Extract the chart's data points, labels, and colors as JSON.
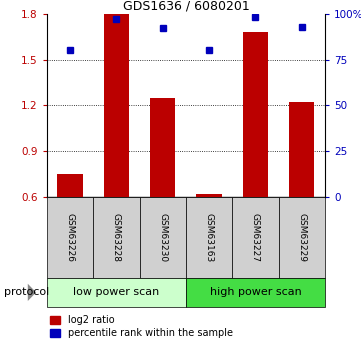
{
  "title": "GDS1636 / 6080201",
  "samples": [
    "GSM63226",
    "GSM63228",
    "GSM63230",
    "GSM63163",
    "GSM63227",
    "GSM63229"
  ],
  "log2_ratio": [
    0.75,
    1.8,
    1.25,
    0.62,
    1.68,
    1.22
  ],
  "percentile_rank": [
    80,
    97,
    92,
    80,
    98,
    93
  ],
  "bar_color": "#bb0000",
  "dot_color": "#0000bb",
  "left_ylim": [
    0.6,
    1.8
  ],
  "right_ylim": [
    0,
    100
  ],
  "left_yticks": [
    0.6,
    0.9,
    1.2,
    1.5,
    1.8
  ],
  "right_yticks": [
    0,
    25,
    50,
    75,
    100
  ],
  "right_yticklabels": [
    "0",
    "25",
    "50",
    "75",
    "100%"
  ],
  "groups": [
    {
      "label": "low power scan",
      "indices": [
        0,
        1,
        2
      ],
      "color": "#ccffcc"
    },
    {
      "label": "high power scan",
      "indices": [
        3,
        4,
        5
      ],
      "color": "#44dd44"
    }
  ],
  "protocol_label": "protocol",
  "legend_items": [
    {
      "color": "#bb0000",
      "label": "log2 ratio"
    },
    {
      "color": "#0000bb",
      "label": "percentile rank within the sample"
    }
  ],
  "bar_width": 0.55,
  "baseline": 0.6,
  "title_fontsize": 9,
  "axis_fontsize": 7.5,
  "sample_fontsize": 6.5,
  "group_fontsize": 8,
  "legend_fontsize": 7
}
